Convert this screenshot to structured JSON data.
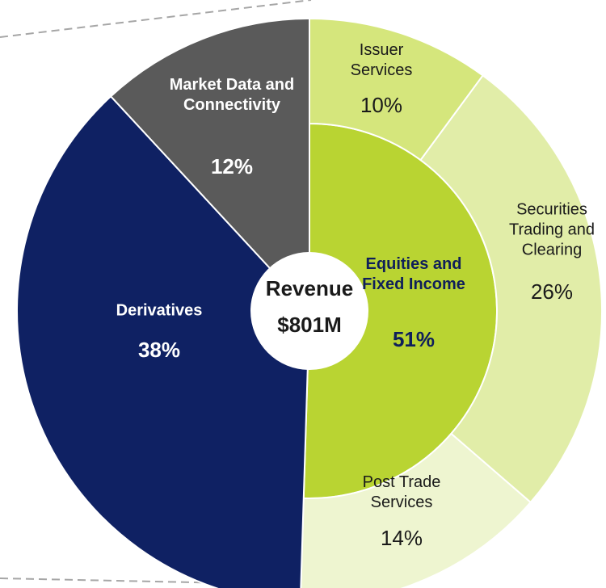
{
  "chart_data": {
    "type": "sunburst",
    "center_label": [
      "Revenue",
      "$801M"
    ],
    "categories": [
      "Equities and Fixed Income",
      "Derivatives",
      "Market Data and Connectivity"
    ],
    "values": [
      51,
      38,
      12
    ],
    "value_labels": [
      "51%",
      "38%",
      "12%"
    ],
    "colors": [
      "#b9d432",
      "#0f2163",
      "#5a5a5a"
    ],
    "children": {
      "parent": 0,
      "categories": [
        "Issuer Services",
        "Securities Trading and Clearing",
        "Post Trade Services"
      ],
      "values": [
        10,
        26,
        14
      ],
      "value_labels": [
        "10%",
        "26%",
        "14%"
      ],
      "colors": [
        "#d5e67c",
        "#e1eda8",
        "#eef5d0"
      ]
    }
  }
}
